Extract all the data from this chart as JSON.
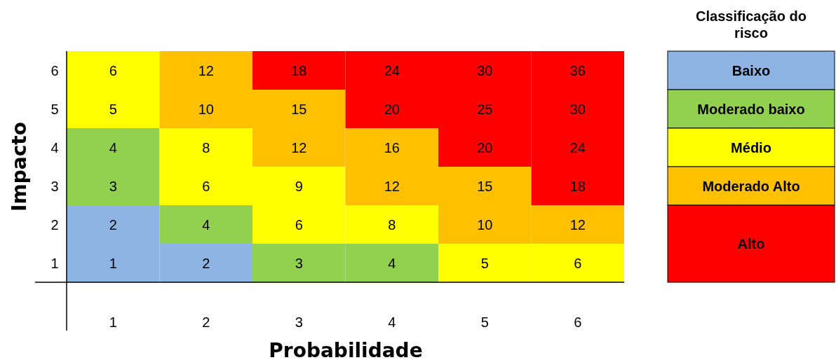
{
  "chart_data": [
    {
      "type": "heatmap",
      "xlabel": "Probabilidade",
      "ylabel": "Impacto",
      "data_labels": true,
      "categories": [
        "1",
        "2",
        "3",
        "4",
        "5",
        "6"
      ],
      "y_categories": [
        "6",
        "5",
        "4",
        "3",
        "2",
        "1"
      ],
      "cells": [
        [
          6,
          12,
          18,
          24,
          30,
          36
        ],
        [
          5,
          10,
          15,
          20,
          25,
          30
        ],
        [
          4,
          8,
          12,
          16,
          20,
          24
        ],
        [
          3,
          6,
          9,
          12,
          15,
          18
        ],
        [
          2,
          4,
          6,
          8,
          10,
          12
        ],
        [
          1,
          2,
          3,
          4,
          5,
          6
        ]
      ],
      "colors": [
        [
          "#ffff00",
          "#ffc000",
          "#ff0000",
          "#ff0000",
          "#ff0000",
          "#ff0000"
        ],
        [
          "#ffff00",
          "#ffc000",
          "#ffc000",
          "#ff0000",
          "#ff0000",
          "#ff0000"
        ],
        [
          "#92d050",
          "#ffff00",
          "#ffc000",
          "#ffc000",
          "#ff0000",
          "#ff0000"
        ],
        [
          "#92d050",
          "#ffff00",
          "#ffff00",
          "#ffc000",
          "#ffc000",
          "#ff0000"
        ],
        [
          "#8db4e2",
          "#92d050",
          "#ffff00",
          "#ffff00",
          "#ffc000",
          "#ffc000"
        ],
        [
          "#8db4e2",
          "#8db4e2",
          "#92d050",
          "#92d050",
          "#ffff00",
          "#ffff00"
        ]
      ]
    },
    {
      "type": "other",
      "title": "Classificação do risco",
      "categories": [
        "Baixo",
        "Moderado baixo",
        "Médio",
        "Moderado Alto",
        "Alto"
      ],
      "colors": [
        "#8db4e2",
        "#92d050",
        "#ffff00",
        "#ffc000",
        "#ff0000"
      ]
    }
  ]
}
